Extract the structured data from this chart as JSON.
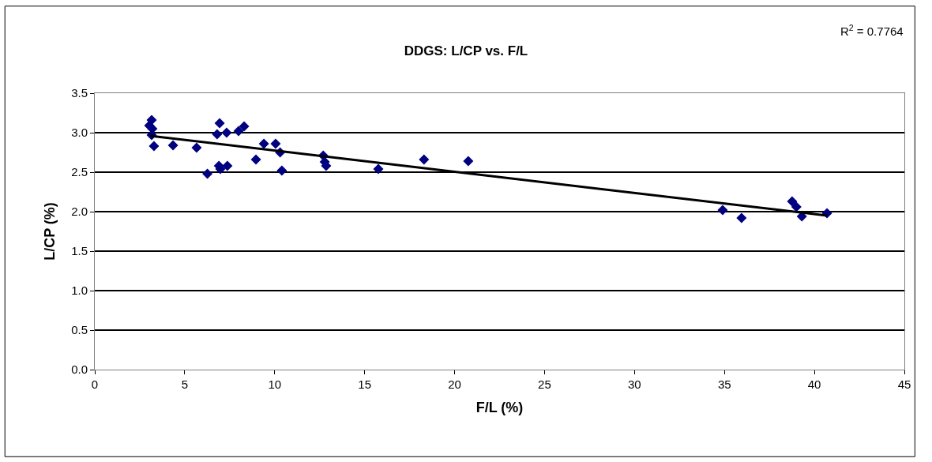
{
  "chart_data": {
    "type": "scatter",
    "title": "DDGS: L/CP vs. F/L",
    "xlabel": "F/L (%)",
    "ylabel": "L/CP (%)",
    "annotations": [
      "R$^{2}$ = 0.7764"
    ],
    "series": [
      {
        "color": "#000080",
        "marker": "diamond",
        "x": [
          3.03,
          3.16,
          3.2,
          3.16,
          3.29,
          4.35,
          5.66,
          6.26,
          6.9,
          6.98,
          7.37,
          6.8,
          6.94,
          7.33,
          7.99,
          8.3,
          8.96,
          9.4,
          10.05,
          10.3,
          10.4,
          12.7,
          12.78,
          12.86,
          15.76,
          18.3,
          20.76,
          34.9,
          35.95,
          38.76,
          39.0,
          39.3,
          40.7
        ],
        "values": [
          3.09,
          3.16,
          3.05,
          2.97,
          2.83,
          2.84,
          2.81,
          2.48,
          2.58,
          2.54,
          2.58,
          2.98,
          3.12,
          3.0,
          3.02,
          3.08,
          2.66,
          2.86,
          2.86,
          2.75,
          2.52,
          2.71,
          2.63,
          2.58,
          2.54,
          2.66,
          2.64,
          2.02,
          1.92,
          2.13,
          2.06,
          1.94,
          1.98
        ]
      },
      {
        "type": "line",
        "color": "#000000",
        "marker": "none",
        "line_style": "solid",
        "x": [
          3.07,
          40.7
        ],
        "values": [
          2.96,
          1.95
        ]
      }
    ],
    "xlim": [
      0,
      45
    ],
    "xticks": [
      0,
      5,
      10,
      15,
      20,
      25,
      30,
      35,
      40,
      45
    ],
    "ylim": [
      0,
      3.5
    ],
    "yticks": [
      {
        "value": 0,
        "label": "0.0"
      },
      {
        "value": 0.5,
        "label": "0.5"
      },
      {
        "value": 1,
        "label": "1.0"
      },
      {
        "value": 1.5,
        "label": "1.5"
      },
      {
        "value": 2,
        "label": "2.0"
      },
      {
        "value": 2.5,
        "label": "2.5"
      },
      {
        "value": 3,
        "label": "3.0"
      },
      {
        "value": 3.5,
        "label": "3.5"
      }
    ],
    "grid": "y",
    "legend": false
  }
}
